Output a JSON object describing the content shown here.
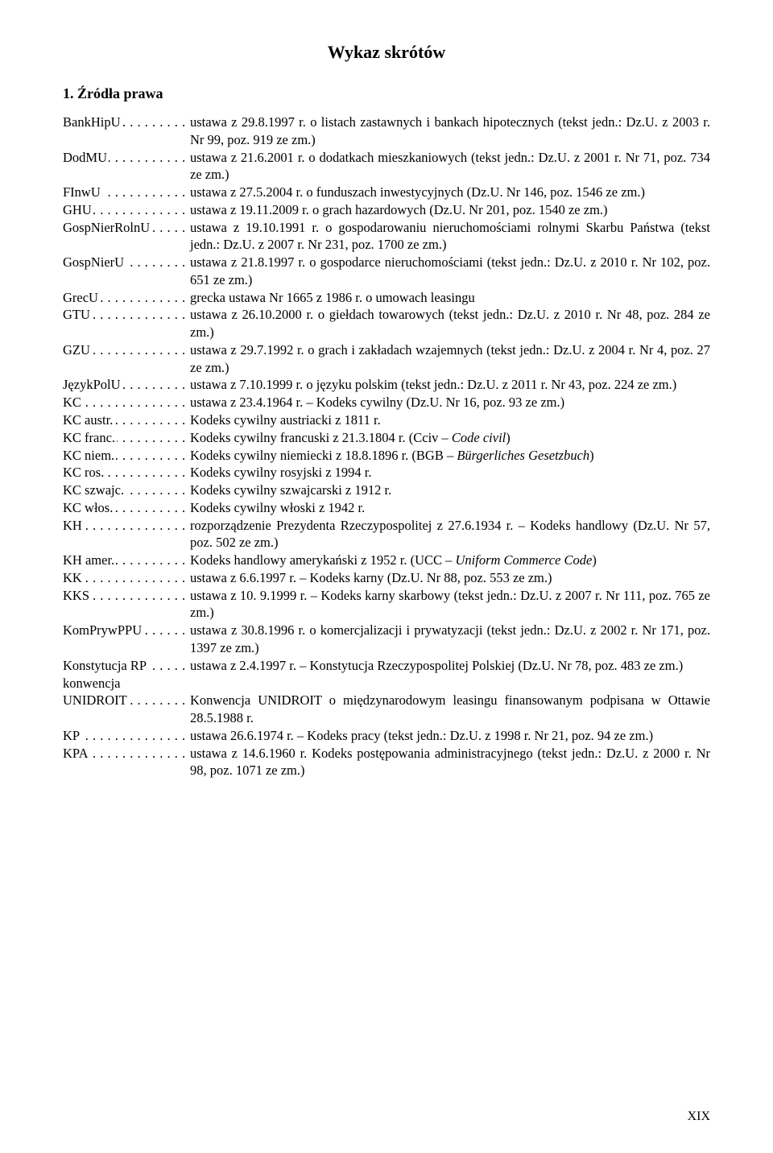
{
  "title": "Wykaz skrótów",
  "sectionHeading": "1. Źródła prawa",
  "pageNumber": "XIX",
  "entries": [
    {
      "abbr": "BankHipU",
      "def": "ustawa z 29.8.1997 r. o listach zastawnych i bankach hipotecznych (tekst jedn.: Dz.U. z 2003 r. Nr 99, poz. 919 ze zm.)"
    },
    {
      "abbr": "DodMU",
      "def": "ustawa z 21.6.2001 r. o dodatkach mieszkaniowych (tekst jedn.: Dz.U. z 2001 r. Nr 71, poz. 734 ze zm.)"
    },
    {
      "abbr": "FInwU",
      "def": "ustawa z 27.5.2004 r. o funduszach inwestycyjnych (Dz.U. Nr 146, poz. 1546 ze zm.)"
    },
    {
      "abbr": "GHU",
      "def": "ustawa z 19.11.2009 r. o grach hazardowych (Dz.U. Nr 201, poz. 1540 ze zm.)"
    },
    {
      "abbr": "GospNierRolnU",
      "def": "ustawa z 19.10.1991 r. o gospodarowaniu nieruchomościami rolnymi Skarbu Państwa (tekst jedn.: Dz.U. z 2007 r. Nr 231, poz. 1700 ze zm.)"
    },
    {
      "abbr": "GospNierU",
      "def": "ustawa z 21.8.1997 r. o gospodarce nieruchomościami (tekst jedn.: Dz.U. z 2010 r. Nr 102, poz. 651 ze zm.)"
    },
    {
      "abbr": "GrecU",
      "def": "grecka ustawa Nr 1665 z 1986 r. o umowach leasingu"
    },
    {
      "abbr": "GTU",
      "def": "ustawa z 26.10.2000 r. o giełdach towarowych (tekst jedn.: Dz.U. z 2010 r. Nr 48, poz. 284 ze zm.)"
    },
    {
      "abbr": "GZU",
      "def": "ustawa z 29.7.1992 r. o grach i zakładach wzajemnych (tekst jedn.: Dz.U. z 2004 r. Nr 4, poz. 27 ze zm.)"
    },
    {
      "abbr": "JęzykPolU",
      "def": "ustawa z 7.10.1999 r. o języku polskim (tekst jedn.: Dz.U. z 2011 r. Nr 43, poz. 224 ze zm.)"
    },
    {
      "abbr": "KC",
      "def": "ustawa z 23.4.1964 r. – Kodeks cywilny (Dz.U. Nr 16, poz. 93 ze zm.)"
    },
    {
      "abbr": "KC austr.",
      "def": "Kodeks cywilny austriacki z 1811 r."
    },
    {
      "abbr": "KC franc.",
      "def": "Kodeks cywilny francuski z 21.3.1804 r. (Cciv – <i>Code civil</i>)"
    },
    {
      "abbr": "KC niem.",
      "def": "Kodeks cywilny niemiecki z 18.8.1896 r. (BGB – <i>Bürgerliches Gesetzbuch</i>)"
    },
    {
      "abbr": "KC ros.",
      "def": "Kodeks cywilny rosyjski z 1994 r."
    },
    {
      "abbr": "KC szwajc.",
      "def": "Kodeks cywilny szwajcarski z 1912 r."
    },
    {
      "abbr": "KC włos.",
      "def": "Kodeks cywilny włoski z 1942 r."
    },
    {
      "abbr": "KH",
      "def": "rozporządzenie Prezydenta Rzeczypospolitej z 27.6.1934 r. – Kodeks handlowy (Dz.U. Nr 57, poz. 502 ze zm.)"
    },
    {
      "abbr": "KH amer.",
      "def": "Kodeks handlowy amerykański z 1952 r. (UCC – <i>Uniform Commerce Code</i>)"
    },
    {
      "abbr": "KK",
      "def": "ustawa z 6.6.1997 r. – Kodeks karny (Dz.U. Nr 88, poz. 553 ze zm.)"
    },
    {
      "abbr": "KKS",
      "def": "ustawa z 10. 9.1999 r. – Kodeks karny skarbowy (tekst jedn.: Dz.U. z 2007 r. Nr 111, poz. 765 ze zm.)"
    },
    {
      "abbr": "KomPrywPPU",
      "def": "ustawa z 30.8.1996 r. o komercjalizacji i prywatyzacji (tekst jedn.: Dz.U. z 2002 r. Nr 171, poz. 1397 ze zm.)"
    },
    {
      "abbr": "Konstytucja RP",
      "def": "ustawa z 2.4.1997 r. – Konstytucja Rzeczypospolitej Polskiej (Dz.U. Nr 78, poz. 483 ze zm.)"
    },
    {
      "abbr": "konwencja UNIDROIT",
      "multiline": true,
      "abbr1": "konwencja",
      "abbr2": "UNIDROIT",
      "def": "Konwencja UNIDROIT o międzynarodowym leasingu finansowanym podpisana w Ottawie 28.5.1988 r."
    },
    {
      "abbr": "KP",
      "def": "ustawa 26.6.1974 r. – Kodeks pracy (tekst jedn.: Dz.U. z 1998 r. Nr 21, poz. 94 ze zm.)"
    },
    {
      "abbr": "KPA",
      "def": "ustawa z 14.6.1960 r. Kodeks postępowania administracyjnego (tekst jedn.: Dz.U. z 2000 r. Nr 98, poz. 1071 ze zm.)"
    }
  ]
}
